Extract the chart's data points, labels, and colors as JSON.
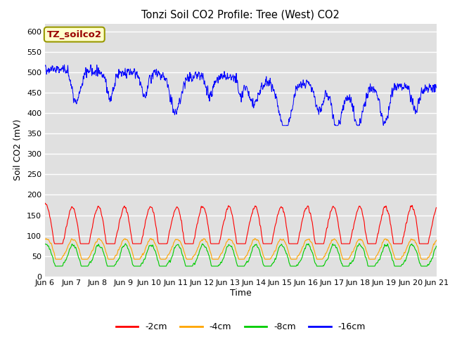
{
  "title": "Tonzi Soil CO2 Profile: Tree (West) CO2",
  "ylabel": "Soil CO2 (mV)",
  "xlabel": "Time",
  "ylim": [
    0,
    620
  ],
  "yticks": [
    0,
    50,
    100,
    150,
    200,
    250,
    300,
    350,
    400,
    450,
    500,
    550,
    600
  ],
  "bg_color": "#e0e0e0",
  "fig_color": "#ffffff",
  "legend_labels": [
    "-2cm",
    "-4cm",
    "-8cm",
    "-16cm"
  ],
  "legend_colors": [
    "#ff0000",
    "#ffa500",
    "#00cc00",
    "#0000ff"
  ],
  "annotation_text": "TZ_soilco2",
  "annotation_fg": "#990000",
  "annotation_bg": "#ffffcc",
  "annotation_border": "#999900",
  "x_tick_labels": [
    "Jun 6",
    "Jun 7",
    "Jun 8",
    "Jun 9",
    "Jun 10",
    "Jun 11",
    "Jun 12",
    "Jun 13",
    "Jun 14",
    "Jun 15",
    "Jun 16",
    "Jun 17",
    "Jun 18",
    "Jun 19",
    "Jun 20",
    "Jun 21"
  ],
  "n_points": 3600,
  "days": 15,
  "seed": 42
}
